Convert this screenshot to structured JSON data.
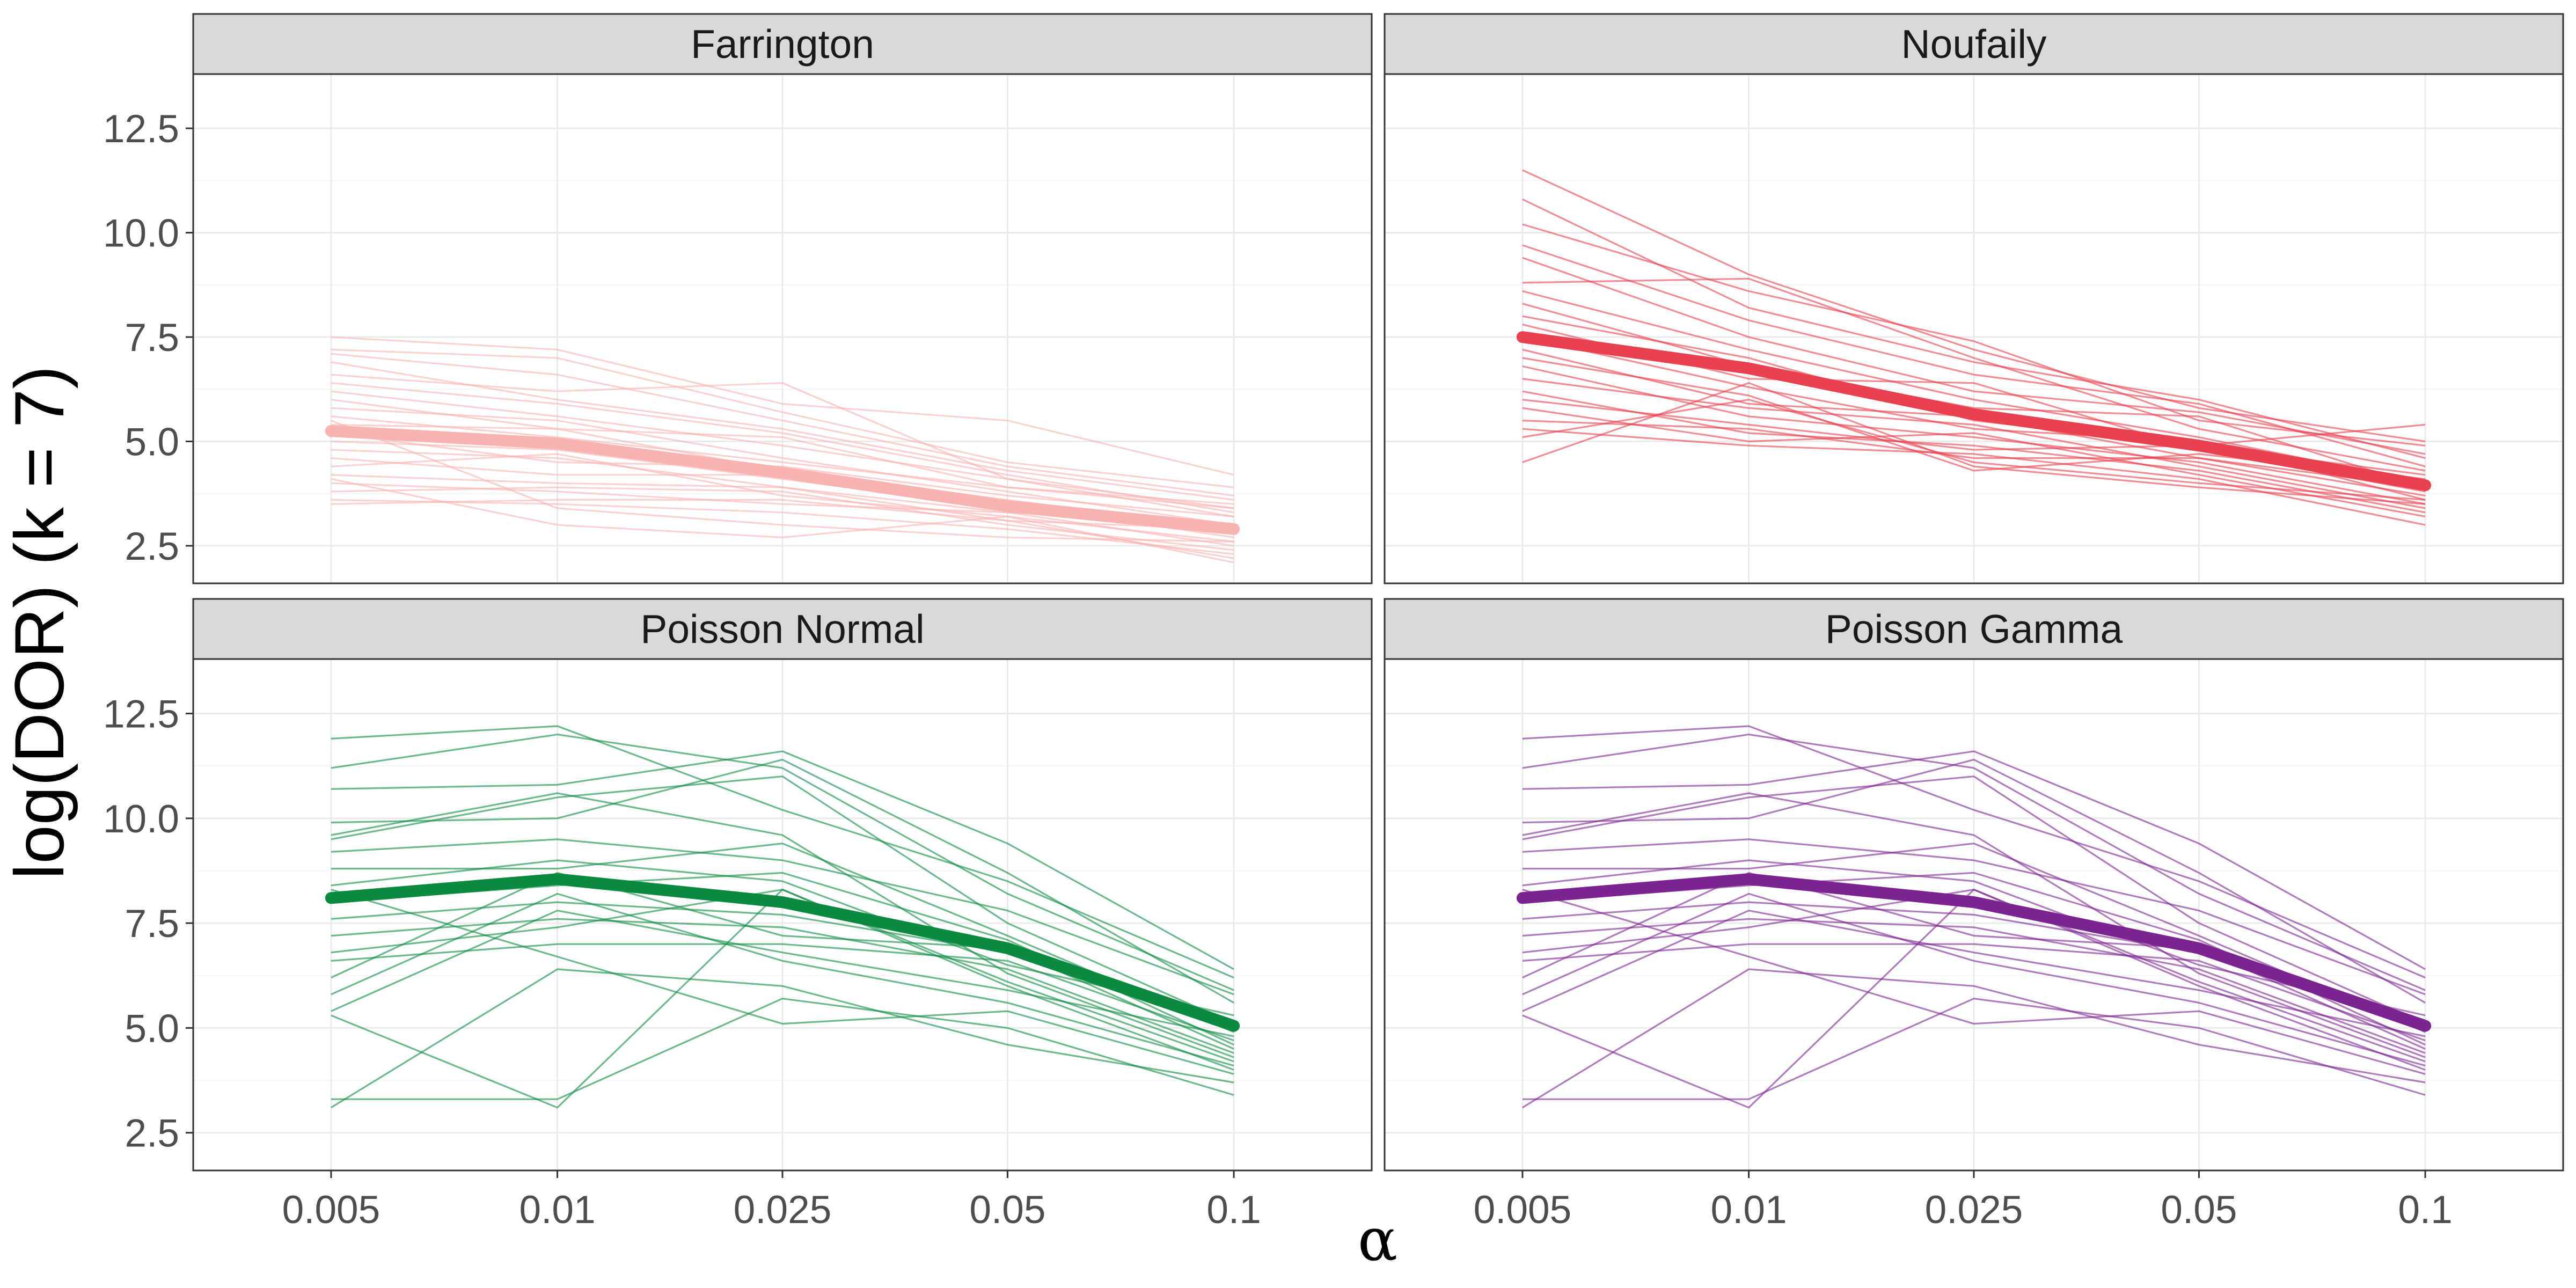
{
  "chart_data": {
    "type": "line",
    "facets": [
      "Farrington",
      "Noufaily",
      "Poisson Normal",
      "Poisson Gamma"
    ],
    "categories": [
      "0.005",
      "0.01",
      "0.025",
      "0.05",
      "0.1"
    ],
    "xlabel": "α",
    "ylabel": "log(DOR) (k = 7)",
    "ylim": [
      1.6,
      13.8
    ],
    "yticks": [
      2.5,
      5.0,
      7.5,
      10.0,
      12.5
    ],
    "ytick_labels": [
      "2.5",
      "5.0",
      "7.5",
      "10.0",
      "12.5"
    ],
    "grid": true,
    "panels": [
      {
        "name": "Farrington",
        "color": "#f8b3b0",
        "mean": [
          5.25,
          4.95,
          4.25,
          3.45,
          2.9
        ],
        "series": [
          [
            7.5,
            7.2,
            5.9,
            5.5,
            4.2
          ],
          [
            7.2,
            7.0,
            5.7,
            4.5,
            3.9
          ],
          [
            7.1,
            6.6,
            5.5,
            4.4,
            3.7
          ],
          [
            6.9,
            6.0,
            5.3,
            4.3,
            3.6
          ],
          [
            6.6,
            6.2,
            6.4,
            4.1,
            3.4
          ],
          [
            6.4,
            5.9,
            5.2,
            4.2,
            3.3
          ],
          [
            6.2,
            5.6,
            4.9,
            4.1,
            3.2
          ],
          [
            6.0,
            5.3,
            5.1,
            3.9,
            3.4
          ],
          [
            5.8,
            5.5,
            4.6,
            3.8,
            3.0
          ],
          [
            5.6,
            5.1,
            4.5,
            3.9,
            3.5
          ],
          [
            5.4,
            5.3,
            4.3,
            3.6,
            2.9
          ],
          [
            5.2,
            4.5,
            4.4,
            3.7,
            3.2
          ],
          [
            5.0,
            4.8,
            4.1,
            3.4,
            2.8
          ],
          [
            4.8,
            4.6,
            3.9,
            3.3,
            3.0
          ],
          [
            4.6,
            4.2,
            4.2,
            3.5,
            2.7
          ],
          [
            4.4,
            4.7,
            3.7,
            3.2,
            2.6
          ],
          [
            4.2,
            4.0,
            3.9,
            3.1,
            2.9
          ],
          [
            4.0,
            3.8,
            3.5,
            3.3,
            2.5
          ],
          [
            3.8,
            3.9,
            3.8,
            3.0,
            2.4
          ],
          [
            3.6,
            3.5,
            3.3,
            2.9,
            2.3
          ],
          [
            3.5,
            3.6,
            3.6,
            3.1,
            2.2
          ],
          [
            4.1,
            3.0,
            2.7,
            3.2,
            2.1
          ],
          [
            5.5,
            3.4,
            3.0,
            2.7,
            2.6
          ]
        ]
      },
      {
        "name": "Noufaily",
        "color": "#e8404f",
        "mean": [
          7.5,
          6.75,
          5.65,
          4.9,
          3.95
        ],
        "series": [
          [
            11.5,
            9.0,
            7.2,
            5.8,
            5.0
          ],
          [
            10.8,
            8.2,
            6.9,
            6.0,
            4.6
          ],
          [
            10.2,
            8.6,
            7.4,
            5.5,
            4.9
          ],
          [
            9.7,
            7.9,
            6.6,
            5.9,
            4.4
          ],
          [
            9.4,
            7.5,
            6.2,
            5.7,
            4.7
          ],
          [
            8.8,
            8.9,
            7.0,
            5.3,
            4.3
          ],
          [
            8.6,
            7.2,
            6.0,
            5.1,
            4.0
          ],
          [
            8.3,
            6.8,
            5.8,
            5.6,
            3.9
          ],
          [
            8.0,
            7.0,
            5.5,
            4.9,
            4.2
          ],
          [
            7.8,
            6.5,
            6.4,
            4.8,
            3.8
          ],
          [
            7.5,
            6.3,
            5.3,
            5.0,
            3.6
          ],
          [
            7.2,
            5.9,
            5.6,
            4.6,
            3.7
          ],
          [
            7.0,
            6.1,
            4.3,
            4.7,
            4.1
          ],
          [
            6.8,
            5.6,
            5.1,
            4.5,
            3.5
          ],
          [
            6.5,
            5.8,
            5.4,
            4.4,
            3.4
          ],
          [
            6.2,
            5.2,
            4.9,
            4.3,
            3.3
          ],
          [
            6.0,
            5.4,
            4.8,
            4.9,
            5.4
          ],
          [
            5.8,
            5.0,
            5.2,
            4.2,
            3.2
          ],
          [
            5.5,
            5.3,
            4.6,
            4.6,
            3.9
          ],
          [
            5.3,
            4.9,
            4.7,
            4.1,
            3.0
          ],
          [
            5.1,
            6.0,
            4.5,
            4.0,
            3.6
          ],
          [
            4.5,
            6.4,
            4.4,
            3.9,
            3.5
          ]
        ]
      },
      {
        "name": "Poisson Normal",
        "color": "#0a8a3f",
        "mean": [
          8.1,
          8.55,
          8.0,
          6.9,
          5.05
        ],
        "series": [
          [
            11.9,
            12.2,
            10.2,
            8.5,
            6.2
          ],
          [
            11.2,
            12.0,
            11.2,
            8.2,
            5.9
          ],
          [
            10.7,
            10.8,
            11.6,
            9.4,
            6.4
          ],
          [
            9.9,
            10.0,
            11.4,
            8.7,
            5.6
          ],
          [
            9.5,
            10.5,
            11.0,
            7.5,
            5.1
          ],
          [
            9.2,
            9.5,
            9.0,
            7.8,
            5.8
          ],
          [
            8.8,
            8.8,
            9.4,
            7.2,
            4.9
          ],
          [
            8.4,
            9.0,
            8.5,
            6.5,
            5.3
          ],
          [
            8.0,
            8.4,
            8.7,
            7.1,
            4.6
          ],
          [
            7.6,
            8.0,
            7.7,
            6.8,
            5.0
          ],
          [
            7.2,
            7.6,
            7.4,
            6.4,
            4.4
          ],
          [
            6.8,
            7.4,
            8.3,
            6.1,
            4.2
          ],
          [
            6.6,
            7.0,
            7.0,
            6.6,
            4.7
          ],
          [
            6.2,
            8.7,
            7.2,
            6.9,
            4.5
          ],
          [
            5.8,
            8.2,
            6.6,
            5.6,
            4.1
          ],
          [
            5.4,
            7.8,
            6.8,
            5.9,
            4.8
          ],
          [
            5.3,
            3.1,
            8.3,
            6.0,
            4.0
          ],
          [
            3.3,
            3.3,
            5.7,
            5.0,
            3.4
          ],
          [
            3.1,
            6.4,
            6.0,
            4.6,
            3.7
          ],
          [
            9.6,
            10.6,
            9.6,
            6.3,
            4.3
          ],
          [
            8.3,
            6.7,
            5.1,
            5.4,
            3.9
          ]
        ]
      },
      {
        "name": "Poisson Gamma",
        "color": "#7b2390",
        "mean": [
          8.1,
          8.55,
          8.0,
          6.9,
          5.05
        ],
        "series": [
          [
            11.9,
            12.2,
            10.2,
            8.5,
            6.2
          ],
          [
            11.2,
            12.0,
            11.2,
            8.2,
            5.9
          ],
          [
            10.7,
            10.8,
            11.6,
            9.4,
            6.4
          ],
          [
            9.9,
            10.0,
            11.4,
            8.7,
            5.6
          ],
          [
            9.5,
            10.5,
            11.0,
            7.5,
            5.1
          ],
          [
            9.2,
            9.5,
            9.0,
            7.8,
            5.8
          ],
          [
            8.8,
            8.8,
            9.4,
            7.2,
            4.9
          ],
          [
            8.4,
            9.0,
            8.5,
            6.5,
            5.3
          ],
          [
            8.0,
            8.4,
            8.7,
            7.1,
            4.6
          ],
          [
            7.6,
            8.0,
            7.7,
            6.8,
            5.0
          ],
          [
            7.2,
            7.6,
            7.4,
            6.4,
            4.4
          ],
          [
            6.8,
            7.4,
            8.3,
            6.1,
            4.2
          ],
          [
            6.6,
            7.0,
            7.0,
            6.6,
            4.7
          ],
          [
            6.2,
            8.7,
            7.2,
            6.9,
            4.5
          ],
          [
            5.8,
            8.2,
            6.6,
            5.6,
            4.1
          ],
          [
            5.4,
            7.8,
            6.8,
            5.9,
            4.8
          ],
          [
            5.3,
            3.1,
            8.3,
            6.0,
            4.0
          ],
          [
            3.3,
            3.3,
            5.7,
            5.0,
            3.4
          ],
          [
            3.1,
            6.4,
            6.0,
            4.6,
            3.7
          ],
          [
            9.6,
            10.6,
            9.6,
            6.3,
            4.3
          ],
          [
            8.3,
            6.7,
            5.1,
            5.4,
            3.9
          ]
        ]
      }
    ]
  }
}
